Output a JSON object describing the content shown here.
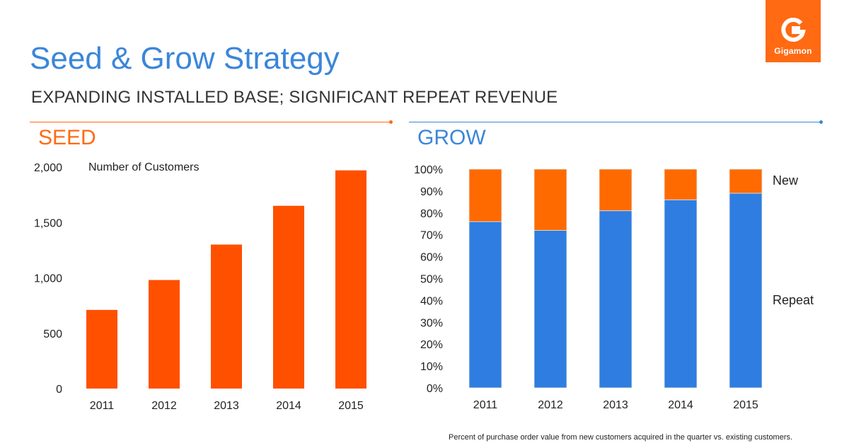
{
  "title": "Seed & Grow Strategy",
  "subtitle": "EXPANDING INSTALLED BASE; SIGNIFICANT REPEAT REVENUE",
  "logo": {
    "text": "Gigamon",
    "icon": "gigamon-g-icon",
    "color": "#ff6a13"
  },
  "left_panel": {
    "heading": "SEED",
    "color": "#ff6a13"
  },
  "right_panel": {
    "heading": "GROW",
    "color": "#3b86d9"
  },
  "footnote": "Percent of purchase order value from new customers acquired in the quarter vs. existing customers.",
  "chart_data": [
    {
      "type": "bar",
      "title": "Number of Customers",
      "categories": [
        "2011",
        "2012",
        "2013",
        "2014",
        "2015"
      ],
      "values": [
        710,
        980,
        1300,
        1650,
        1970
      ],
      "ylim": [
        0,
        2000
      ],
      "yticks": [
        0,
        500,
        1000,
        1500,
        2000
      ],
      "ytick_labels": [
        "0",
        "500",
        "1,000",
        "1,500",
        "2,000"
      ],
      "color": "#ff5000",
      "grid": false
    },
    {
      "type": "bar",
      "stacked": true,
      "categories": [
        "2011",
        "2012",
        "2013",
        "2014",
        "2015"
      ],
      "series": [
        {
          "name": "Repeat",
          "values": [
            76,
            72,
            81,
            86,
            89
          ],
          "color": "#2f7de0"
        },
        {
          "name": "New",
          "values": [
            24,
            28,
            19,
            14,
            11
          ],
          "color": "#ff6a00"
        }
      ],
      "ylim": [
        0,
        100
      ],
      "yticks": [
        0,
        10,
        20,
        30,
        40,
        50,
        60,
        70,
        80,
        90,
        100
      ],
      "ytick_labels": [
        "0%",
        "10%",
        "20%",
        "30%",
        "40%",
        "50%",
        "60%",
        "70%",
        "80%",
        "90%",
        "100%"
      ],
      "legend_placement": "right",
      "grid": false
    }
  ]
}
